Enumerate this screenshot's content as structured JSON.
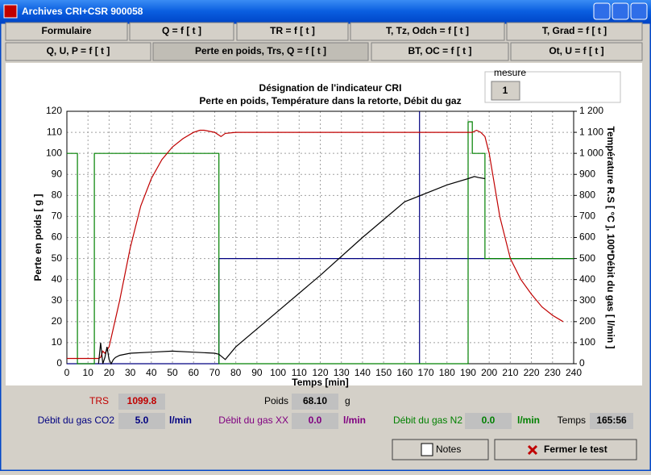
{
  "window": {
    "title": "Archives CRI+CSR  900058"
  },
  "tabs": [
    [
      "Formulaire",
      "Q = f [ t ]",
      "TR = f [ t ]",
      "T, Tz, Odch = f [ t ]",
      "T, Grad = f [ t ]"
    ],
    [
      "Q, U, P = f [ t ]",
      "Perte en poids, Trs, Q = f [ t ]",
      "BT, OC = f [ t ]",
      "Ot, U = f [ t ]"
    ]
  ],
  "active_tab": [
    1,
    1
  ],
  "measure": {
    "label": "mesure",
    "value": "1"
  },
  "chart_data": {
    "type": "line",
    "title": "Désignation de l'indicateur CRI",
    "subtitle": "Perte en poids, Température dans la retorte, Débit du gaz",
    "x_label": "Temps [min]",
    "y_label": "Perte en poids [ g ]",
    "y2_label": "Température R.S [ °C ], 100*Débit du gas [ l/min ]",
    "xlim": [
      0,
      240
    ],
    "xticks": [
      0,
      10,
      20,
      30,
      40,
      50,
      60,
      70,
      80,
      90,
      100,
      110,
      120,
      130,
      140,
      150,
      160,
      170,
      180,
      190,
      200,
      210,
      220,
      230,
      240
    ],
    "ylim": [
      0,
      120
    ],
    "yticks": [
      0,
      10,
      20,
      30,
      40,
      50,
      60,
      70,
      80,
      90,
      100,
      110,
      120
    ],
    "y2lim": [
      0,
      1200
    ],
    "y2ticks": [
      0,
      100,
      200,
      300,
      400,
      500,
      600,
      700,
      800,
      900,
      {
        "value": 1000,
        "label": "1 000"
      },
      {
        "value": 1100,
        "label": "1 100"
      },
      {
        "value": 1200,
        "label": "1 200"
      }
    ],
    "grid": true,
    "series": [
      {
        "color": "#000080",
        "x": [
          0,
          72,
          72,
          167,
          167,
          167,
          167,
          240
        ],
        "values": [
          0,
          0,
          50,
          50,
          0,
          120,
          50,
          50
        ]
      },
      {
        "color": "#008000",
        "x": [
          0,
          5,
          5,
          13,
          13,
          72,
          72,
          190,
          190,
          192,
          192,
          198,
          198,
          240
        ],
        "values": [
          100,
          100,
          0,
          0,
          100,
          100,
          0,
          0,
          115,
          115,
          100,
          100,
          50,
          50
        ]
      },
      {
        "color": "#c00000",
        "axis": "y2",
        "x": [
          0,
          15,
          16,
          17,
          18,
          20,
          25,
          30,
          35,
          40,
          45,
          50,
          55,
          60,
          63,
          65,
          70,
          73,
          75,
          80,
          190,
          192,
          194,
          196,
          198,
          200,
          205,
          210,
          215,
          220,
          225,
          230,
          235
        ],
        "values": [
          25,
          25,
          30,
          60,
          50,
          80,
          300,
          550,
          750,
          880,
          970,
          1030,
          1070,
          1100,
          1110,
          1110,
          1100,
          1080,
          1095,
          1100,
          1100,
          1100,
          1110,
          1100,
          1080,
          1000,
          700,
          500,
          400,
          330,
          270,
          230,
          200
        ]
      },
      {
        "color": "#000000",
        "x": [
          15,
          16,
          17,
          18,
          19,
          20,
          21,
          22,
          23,
          25,
          30,
          40,
          50,
          60,
          70,
          72,
          75,
          80,
          100,
          120,
          140,
          160,
          180,
          190,
          193,
          195,
          198
        ],
        "values": [
          0,
          10,
          0,
          3,
          8,
          2,
          0,
          2,
          3,
          4,
          5,
          5.5,
          6,
          5.5,
          5,
          4.5,
          2,
          8,
          25,
          42,
          60,
          77,
          85,
          88,
          89,
          88.5,
          88
        ]
      }
    ]
  },
  "readings": [
    {
      "label": "TRS",
      "value": "1099.8",
      "color": "#c00000"
    },
    {
      "label": "Poids",
      "value": "68.10",
      "unit": "g",
      "color": "#000000"
    },
    {
      "label": "Débit du gas CO2",
      "value": "5.0",
      "unit": "l/min",
      "color": "#000080"
    },
    {
      "label": "Débit du gas XX",
      "value": "0.0",
      "unit": "l/min",
      "color": "#800080"
    },
    {
      "label": "Débit du gas N2",
      "value": "0.0",
      "unit": "l/min",
      "color": "#008000"
    },
    {
      "label": "Temps",
      "value": "165:56",
      "color": "#000000"
    }
  ],
  "buttons": [
    "Notes",
    "Fermer le test"
  ]
}
